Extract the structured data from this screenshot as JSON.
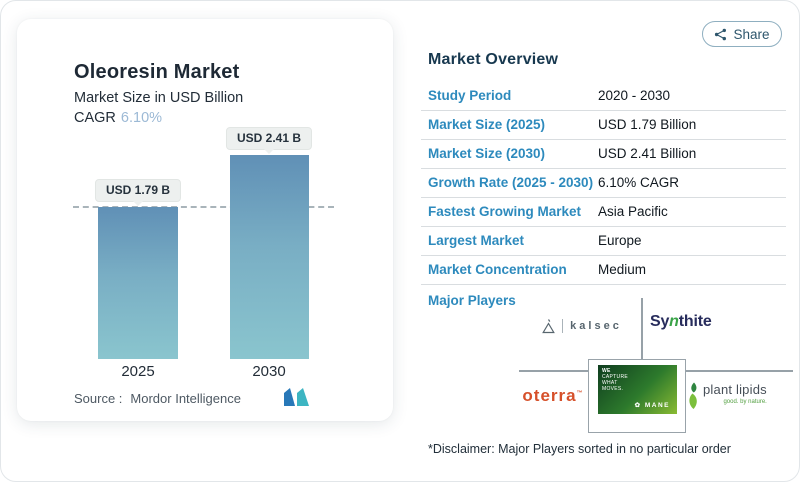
{
  "share": {
    "label": "Share"
  },
  "chart_card": {
    "title": "Oleoresin Market",
    "subtitle": "Market Size in USD Billion",
    "cagr_label": "CAGR",
    "cagr_value": "6.10%",
    "source_label": "Source :",
    "source_value": "Mordor Intelligence"
  },
  "chart_data": {
    "type": "bar",
    "title": "Oleoresin Market",
    "ylabel": "Market Size in USD Billion",
    "categories": [
      "2025",
      "2030"
    ],
    "values": [
      1.79,
      2.41
    ],
    "bar_labels": [
      "USD 1.79 B",
      "USD 2.41 B"
    ],
    "cagr_percent": 6.1,
    "reference_line_value": 1.79,
    "ylim": [
      0,
      2.41
    ],
    "grid": "off",
    "bar_color_top": "#6090b6",
    "bar_color_bottom": "#8ac5ce",
    "reference_line_color": "#a9b4ba"
  },
  "overview": {
    "heading": "Market Overview",
    "rows": [
      {
        "label": "Study Period",
        "value": "2020 - 2030"
      },
      {
        "label": "Market Size (2025)",
        "value": "USD 1.79 Billion"
      },
      {
        "label": "Market Size (2030)",
        "value": "USD 2.41 Billion"
      },
      {
        "label": "Growth Rate (2025 - 2030)",
        "value": "6.10% CAGR"
      },
      {
        "label": "Fastest Growing Market",
        "value": "Asia Pacific"
      },
      {
        "label": "Largest Market",
        "value": "Europe"
      },
      {
        "label": "Market Concentration",
        "value": "Medium"
      }
    ],
    "major_players_label": "Major Players",
    "disclaimer": "*Disclaimer: Major Players sorted in no particular order"
  },
  "logos": {
    "kalsec": {
      "text": "kalsec"
    },
    "synthite": {
      "pre": "Sy",
      "n": "n",
      "post": "thite"
    },
    "oterra": {
      "text": "oterra"
    },
    "mane": {
      "tag_line1": "WE",
      "tag_line2": "CAPTURE",
      "tag_line3": "WHAT",
      "tag_line4": "MOVES.",
      "name": "MANE"
    },
    "plant_lipids": {
      "text": "plant lipids",
      "tagline": "good. by nature."
    }
  },
  "colors": {
    "accent_blue_label": "#2d8abd",
    "heading_navy": "#17384f",
    "cagr_light_blue": "#9cb9d5",
    "oterra_brand": "#d6502a",
    "synthite_navy": "#272c5c",
    "synthite_green": "#3aa348",
    "plant_lipids_green": "#54a043",
    "mordor_blue": "#2878b8",
    "mordor_teal": "#3db5c2"
  }
}
